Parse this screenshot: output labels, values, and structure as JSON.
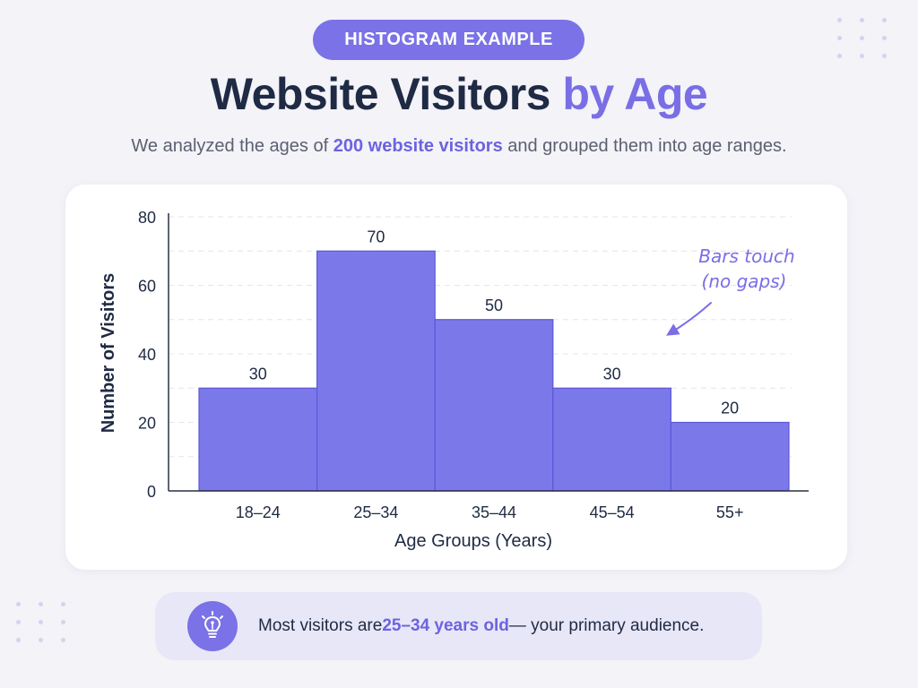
{
  "header": {
    "badge": "HISTOGRAM EXAMPLE",
    "title_main": "Website Visitors ",
    "title_accent": "by Age",
    "subtitle_pre": "We analyzed the ages of ",
    "subtitle_highlight": "200 website visitors",
    "subtitle_post": " and grouped them into age ranges."
  },
  "chart_data": {
    "type": "bar",
    "variant": "histogram",
    "categories": [
      "18–24",
      "25–34",
      "35–44",
      "45–54",
      "55+"
    ],
    "values": [
      30,
      70,
      50,
      30,
      20
    ],
    "data_labels": [
      "30",
      "70",
      "50",
      "30",
      "20"
    ],
    "xlabel": "Age Groups (Years)",
    "ylabel": "Number of Visitors",
    "ylim": [
      0,
      80
    ],
    "yticks": [
      0,
      20,
      40,
      60,
      80
    ],
    "grid": true,
    "bar_color": "#7b78ea",
    "annotation": {
      "line1": "Bars touch",
      "line2": "(no gaps)"
    }
  },
  "insight": {
    "icon": "lightbulb-icon",
    "text_pre": "Most visitors are ",
    "text_highlight": "25–34 years old",
    "text_post": " — your primary audience."
  },
  "colors": {
    "accent": "#7a72e6",
    "title_dark": "#1f2a44",
    "highlight": "#6c63e0"
  }
}
